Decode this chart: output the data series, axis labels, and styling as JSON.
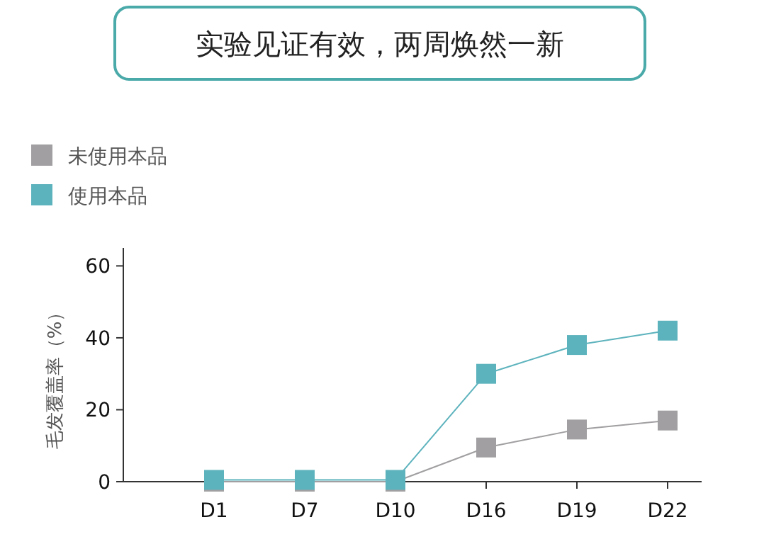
{
  "chart_data": {
    "type": "line",
    "title": "实验见证有效，两周焕然一新",
    "ylabel": "毛发覆盖率（%）",
    "categories": [
      "D1",
      "D7",
      "D10",
      "D16",
      "D19",
      "D22"
    ],
    "series": [
      {
        "name": "未使用本品",
        "color": "#a19fa1",
        "values": [
          0,
          0,
          0,
          9.5,
          14.5,
          17
        ]
      },
      {
        "name": "使用本品",
        "color": "#5db3bd",
        "values": [
          0.5,
          0.5,
          0.5,
          30,
          38,
          42
        ]
      }
    ],
    "ylim": [
      0,
      65
    ],
    "yticks": [
      0,
      20,
      40,
      60
    ],
    "marker": "square",
    "line_style": "solid",
    "legend": "top left",
    "grid": false
  }
}
